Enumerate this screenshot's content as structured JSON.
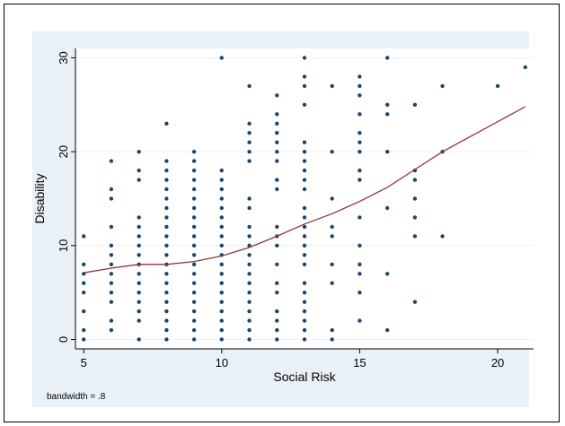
{
  "chart_data": {
    "type": "scatter",
    "title": "",
    "xlabel": "Social Risk",
    "ylabel": "Disability",
    "note": "bandwidth = .8",
    "xlim": [
      4.7,
      21.3
    ],
    "ylim": [
      -1,
      31
    ],
    "xticks": [
      5,
      10,
      15,
      20
    ],
    "yticks": [
      0,
      10,
      20,
      30
    ],
    "grid": "horizontal",
    "legend": "none",
    "colors": {
      "outer_background": "#e9f1f7",
      "plot_background": "#ffffff",
      "points": "#1a476f",
      "smooth_line": "#90353b",
      "gridlines": "#eaf2f3"
    },
    "series": [
      {
        "name": "",
        "kind": "scatter",
        "points": [
          [
            5,
            0
          ],
          [
            5,
            1
          ],
          [
            5,
            3
          ],
          [
            5,
            5
          ],
          [
            5,
            6
          ],
          [
            5,
            7
          ],
          [
            5,
            8
          ],
          [
            5,
            11
          ],
          [
            6,
            1
          ],
          [
            6,
            2
          ],
          [
            6,
            4
          ],
          [
            6,
            5
          ],
          [
            6,
            6
          ],
          [
            6,
            7
          ],
          [
            6,
            8
          ],
          [
            6,
            9
          ],
          [
            6,
            10
          ],
          [
            6,
            12
          ],
          [
            6,
            15
          ],
          [
            6,
            16
          ],
          [
            6,
            19
          ],
          [
            7,
            0
          ],
          [
            7,
            2
          ],
          [
            7,
            3
          ],
          [
            7,
            4
          ],
          [
            7,
            5
          ],
          [
            7,
            6
          ],
          [
            7,
            7
          ],
          [
            7,
            8
          ],
          [
            7,
            9
          ],
          [
            7,
            10
          ],
          [
            7,
            11
          ],
          [
            7,
            12
          ],
          [
            7,
            13
          ],
          [
            7,
            17
          ],
          [
            7,
            18
          ],
          [
            7,
            20
          ],
          [
            8,
            0
          ],
          [
            8,
            1
          ],
          [
            8,
            2
          ],
          [
            8,
            3
          ],
          [
            8,
            4
          ],
          [
            8,
            5
          ],
          [
            8,
            6
          ],
          [
            8,
            7
          ],
          [
            8,
            8
          ],
          [
            8,
            9
          ],
          [
            8,
            10
          ],
          [
            8,
            11
          ],
          [
            8,
            12
          ],
          [
            8,
            13
          ],
          [
            8,
            14
          ],
          [
            8,
            15
          ],
          [
            8,
            16
          ],
          [
            8,
            17
          ],
          [
            8,
            18
          ],
          [
            8,
            19
          ],
          [
            8,
            23
          ],
          [
            9,
            0
          ],
          [
            9,
            1
          ],
          [
            9,
            2
          ],
          [
            9,
            3
          ],
          [
            9,
            4
          ],
          [
            9,
            5
          ],
          [
            9,
            6
          ],
          [
            9,
            7
          ],
          [
            9,
            8
          ],
          [
            9,
            9
          ],
          [
            9,
            10
          ],
          [
            9,
            11
          ],
          [
            9,
            12
          ],
          [
            9,
            13
          ],
          [
            9,
            14
          ],
          [
            9,
            15
          ],
          [
            9,
            16
          ],
          [
            9,
            17
          ],
          [
            9,
            18
          ],
          [
            9,
            19
          ],
          [
            9,
            20
          ],
          [
            10,
            0
          ],
          [
            10,
            1
          ],
          [
            10,
            2
          ],
          [
            10,
            3
          ],
          [
            10,
            4
          ],
          [
            10,
            5
          ],
          [
            10,
            6
          ],
          [
            10,
            7
          ],
          [
            10,
            8
          ],
          [
            10,
            9
          ],
          [
            10,
            10
          ],
          [
            10,
            11
          ],
          [
            10,
            12
          ],
          [
            10,
            13
          ],
          [
            10,
            14
          ],
          [
            10,
            15
          ],
          [
            10,
            16
          ],
          [
            10,
            17
          ],
          [
            10,
            18
          ],
          [
            10,
            30
          ],
          [
            11,
            0
          ],
          [
            11,
            1
          ],
          [
            11,
            2
          ],
          [
            11,
            3
          ],
          [
            11,
            4
          ],
          [
            11,
            5
          ],
          [
            11,
            6
          ],
          [
            11,
            7
          ],
          [
            11,
            8
          ],
          [
            11,
            9
          ],
          [
            11,
            10
          ],
          [
            11,
            11
          ],
          [
            11,
            12
          ],
          [
            11,
            14
          ],
          [
            11,
            15
          ],
          [
            11,
            19
          ],
          [
            11,
            20
          ],
          [
            11,
            21
          ],
          [
            11,
            22
          ],
          [
            11,
            23
          ],
          [
            11,
            27
          ],
          [
            12,
            0
          ],
          [
            12,
            1
          ],
          [
            12,
            2
          ],
          [
            12,
            3
          ],
          [
            12,
            5
          ],
          [
            12,
            6
          ],
          [
            12,
            8
          ],
          [
            12,
            10
          ],
          [
            12,
            11
          ],
          [
            12,
            12
          ],
          [
            12,
            16
          ],
          [
            12,
            17
          ],
          [
            12,
            19
          ],
          [
            12,
            20
          ],
          [
            12,
            21
          ],
          [
            12,
            22
          ],
          [
            12,
            23
          ],
          [
            12,
            24
          ],
          [
            12,
            26
          ],
          [
            13,
            0
          ],
          [
            13,
            1
          ],
          [
            13,
            2
          ],
          [
            13,
            3
          ],
          [
            13,
            4
          ],
          [
            13,
            5
          ],
          [
            13,
            6
          ],
          [
            13,
            8
          ],
          [
            13,
            9
          ],
          [
            13,
            10
          ],
          [
            13,
            11
          ],
          [
            13,
            12
          ],
          [
            13,
            13
          ],
          [
            13,
            14
          ],
          [
            13,
            16
          ],
          [
            13,
            17
          ],
          [
            13,
            18
          ],
          [
            13,
            19
          ],
          [
            13,
            20
          ],
          [
            13,
            21
          ],
          [
            13,
            25
          ],
          [
            13,
            27
          ],
          [
            13,
            28
          ],
          [
            13,
            30
          ],
          [
            14,
            0
          ],
          [
            14,
            1
          ],
          [
            14,
            6
          ],
          [
            14,
            8
          ],
          [
            14,
            11
          ],
          [
            14,
            12
          ],
          [
            14,
            15
          ],
          [
            14,
            20
          ],
          [
            14,
            27
          ],
          [
            15,
            2
          ],
          [
            15,
            5
          ],
          [
            15,
            7
          ],
          [
            15,
            8
          ],
          [
            15,
            10
          ],
          [
            15,
            13
          ],
          [
            15,
            17
          ],
          [
            15,
            18
          ],
          [
            15,
            20
          ],
          [
            15,
            21
          ],
          [
            15,
            22
          ],
          [
            15,
            24
          ],
          [
            15,
            26
          ],
          [
            15,
            27
          ],
          [
            15,
            28
          ],
          [
            16,
            1
          ],
          [
            16,
            7
          ],
          [
            16,
            14
          ],
          [
            16,
            20
          ],
          [
            16,
            24
          ],
          [
            16,
            25
          ],
          [
            16,
            30
          ],
          [
            17,
            4
          ],
          [
            17,
            11
          ],
          [
            17,
            13
          ],
          [
            17,
            15
          ],
          [
            17,
            17
          ],
          [
            17,
            18
          ],
          [
            17,
            25
          ],
          [
            18,
            11
          ],
          [
            18,
            20
          ],
          [
            18,
            27
          ],
          [
            20,
            27
          ],
          [
            21,
            29
          ]
        ]
      },
      {
        "name": "",
        "kind": "line",
        "points": [
          [
            5,
            7.1
          ],
          [
            6,
            7.6
          ],
          [
            7,
            8.0
          ],
          [
            8,
            8.0
          ],
          [
            9,
            8.3
          ],
          [
            10,
            8.9
          ],
          [
            11,
            9.8
          ],
          [
            12,
            11.0
          ],
          [
            13,
            12.3
          ],
          [
            14,
            13.4
          ],
          [
            15,
            14.7
          ],
          [
            16,
            16.2
          ],
          [
            17,
            18.1
          ],
          [
            18,
            20.0
          ],
          [
            19,
            21.6
          ],
          [
            20,
            23.2
          ],
          [
            21,
            24.8
          ]
        ]
      }
    ]
  }
}
